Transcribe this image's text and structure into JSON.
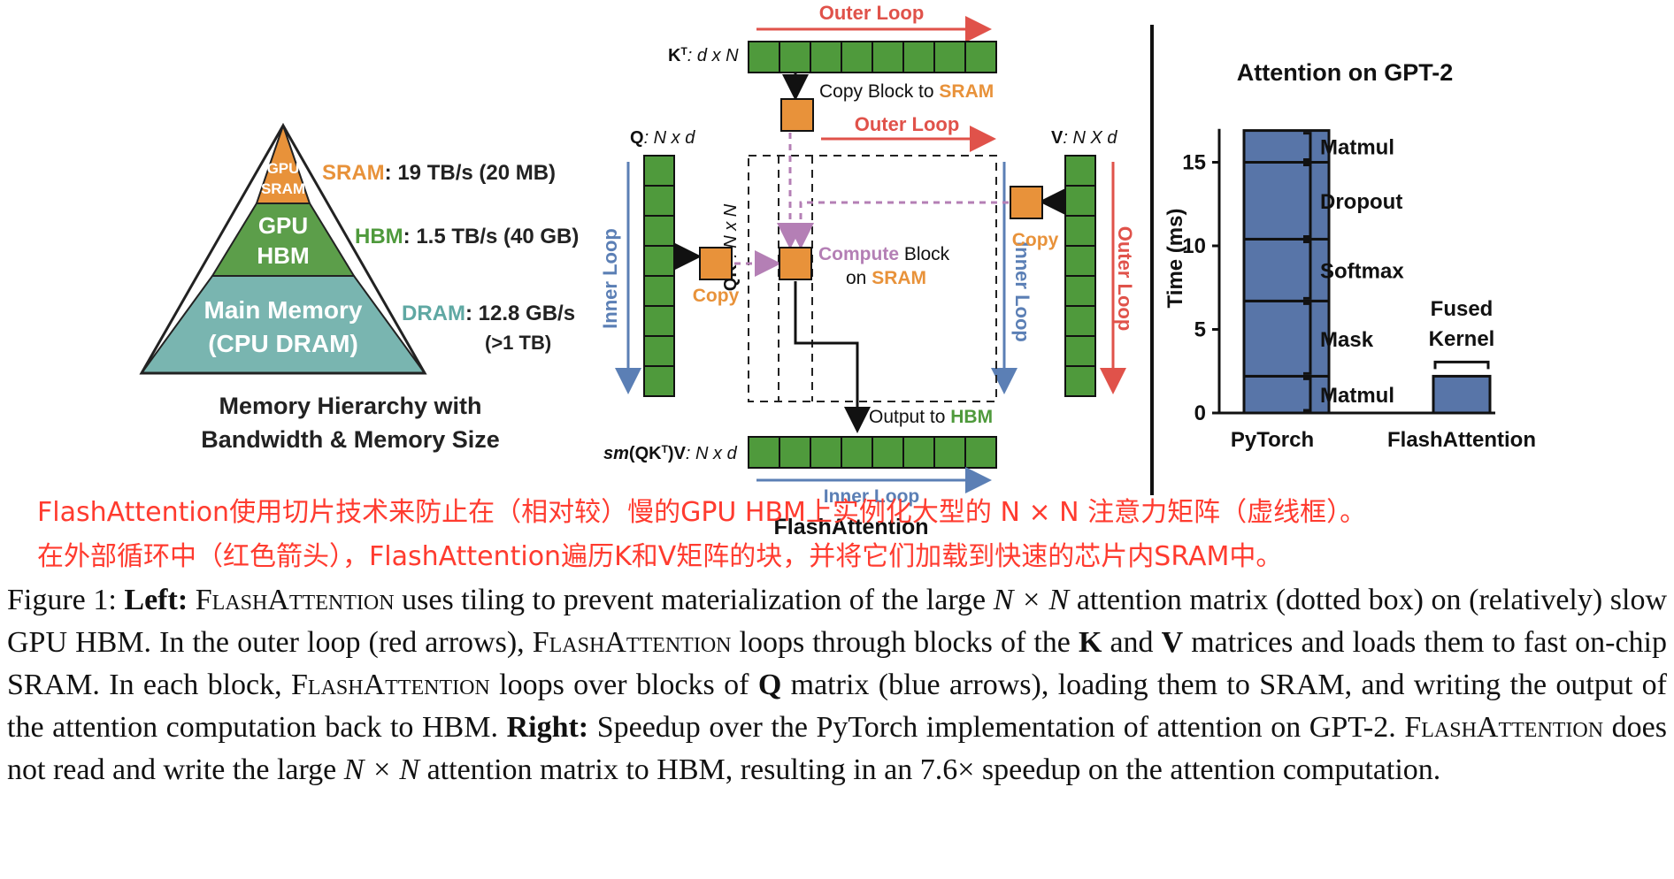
{
  "memory_hierarchy": {
    "tiers": [
      {
        "label_line1": "GPU",
        "label_line2": "SRAM",
        "spec_name": "SRAM",
        "spec_value": ": 19 TB/s (20 MB)",
        "color": "#e8923a",
        "spec_color": "#e8923a"
      },
      {
        "label_line1": "GPU",
        "label_line2": "HBM",
        "spec_name": "HBM",
        "spec_value": ": 1.5 TB/s (40 GB)",
        "color": "#5c9e4a",
        "spec_color": "#4f9a3c"
      },
      {
        "label_line1": "Main Memory",
        "label_line2": "(CPU DRAM)",
        "spec_name": "DRAM",
        "spec_value": ": 12.8 GB/s",
        "spec_value_2": "(>1 TB)",
        "color": "#79b5b0",
        "spec_color": "#5fa8a3"
      }
    ],
    "caption_line1": "Memory Hierarchy with",
    "caption_line2": "Bandwidth & Memory Size"
  },
  "flash_diagram": {
    "kt_label": "K",
    "kt_sup": "T",
    "kt_dims": ": d x N",
    "q_label": "Q",
    "q_dims": ": N x d",
    "v_label": "V",
    "v_dims": ": N X d",
    "qkt_label": "QK",
    "qkt_dims": ": N x N",
    "out_label_prefix": "sm",
    "out_label": "(QK",
    "out_label_suffix": ")V",
    "out_dims": ": N x d",
    "outer_loop_top": "Outer Loop",
    "outer_loop_mid": "Outer Loop",
    "outer_loop_right": "Outer Loop",
    "inner_loop_left": "Inner Loop",
    "inner_loop_right": "Inner Loop",
    "inner_loop_bottom": "Inner Loop",
    "copy_block_prefix": "Copy Block to ",
    "copy_block_target": "SRAM",
    "copy_left": "Copy",
    "copy_right": "Copy",
    "compute_word": "Compute",
    "compute_rest": " Block",
    "on_word": "on ",
    "on_target": "SRAM",
    "output_prefix": "Output to ",
    "output_target": "HBM",
    "title": "FlashAttention",
    "colors": {
      "block_green": "#4f9a3c",
      "block_orange": "#e8923a",
      "outer_red": "#e0524a",
      "inner_blue": "#5b7fb5",
      "dashed_purple": "#b47fb5"
    }
  },
  "chart_data": {
    "type": "bar",
    "title": "Attention on GPT-2",
    "ylabel": "Time (ms)",
    "ylim": [
      0,
      17
    ],
    "yticks": [
      0,
      5,
      10,
      15
    ],
    "categories": [
      "PyTorch",
      "FlashAttention"
    ],
    "stacks": [
      {
        "category": "PyTorch",
        "segments": [
          {
            "name": "Matmul",
            "value": 2.2
          },
          {
            "name": "Mask",
            "value": 4.5
          },
          {
            "name": "Softmax",
            "value": 3.7
          },
          {
            "name": "Dropout",
            "value": 4.6
          },
          {
            "name": "Matmul",
            "value": 1.9
          }
        ]
      },
      {
        "category": "FlashAttention",
        "segments": [
          {
            "name": "Fused Kernel",
            "value": 2.2
          }
        ]
      }
    ],
    "bar_color": "#5875a8",
    "grid": false,
    "annotations": [
      "Matmul",
      "Dropout",
      "Softmax",
      "Mask",
      "Matmul",
      "Fused",
      "Kernel"
    ]
  },
  "zh_note": {
    "line1": "FlashAttention使用切片技术来防止在（相对较）慢的GPU HBM上实例化大型的 N × N 注意力矩阵（虚线框）。",
    "line2": "在外部循环中（红色箭头），FlashAttention遍历K和V矩阵的块，并将它们加载到快速的芯片内SRAM中。"
  },
  "caption": {
    "fig_label": "Figure 1: ",
    "left_label": "Left:",
    "flash_name": "FlashAttention",
    "seg1": " uses tiling to prevent materialization of the large ",
    "nxn": "N × N",
    "seg2": " attention matrix (dotted box) on (relatively) slow GPU HBM. In the outer loop (red arrows), ",
    "seg3": " loops through blocks of the ",
    "k_bold": "K",
    "and_word": " and ",
    "v_bold": "V",
    "seg4": " matrices and loads them to fast on-chip SRAM. In each block, ",
    "seg5": " loops over blocks of ",
    "q_bold": "Q",
    "seg6": " matrix (blue arrows), loading them to SRAM, and writing the output of the attention computation back to HBM. ",
    "right_label": "Right:",
    "seg7": " Speedup over the PyTorch implementation of attention on GPT-2. ",
    "seg8": " does not read and write the large ",
    "seg9": " attention matrix to HBM, resulting in an 7.6× speedup on the attention computation."
  }
}
